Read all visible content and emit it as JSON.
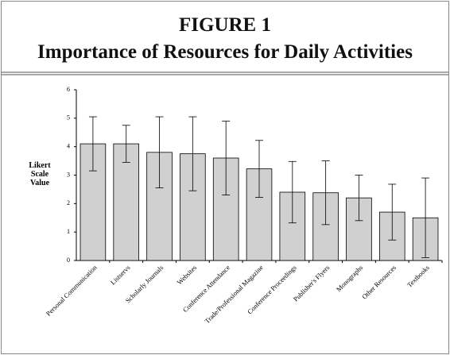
{
  "chart_data": {
    "type": "bar",
    "title": "FIGURE 1",
    "subtitle": "Importance of Resources for Daily Activities",
    "y_label": "Likert Scale Value",
    "categories": [
      "Personal Communication",
      "Listservs",
      "Scholarly Journals",
      "Websites",
      "Conference Attendance",
      "Trade/Professional Magazine",
      "Conference Proceedings",
      "Publisher's Flyers",
      "Monographs",
      "Other Resources",
      "Textbooks"
    ],
    "values": [
      4.1,
      4.1,
      3.8,
      3.75,
      3.6,
      3.22,
      2.4,
      2.38,
      2.2,
      1.7,
      1.5
    ],
    "errors": [
      0.95,
      0.65,
      1.25,
      1.3,
      1.3,
      1.0,
      1.08,
      1.12,
      0.8,
      0.98,
      1.4
    ],
    "color": "#d0d0d0",
    "ylim": [
      0,
      6
    ],
    "yticks": [
      0,
      1,
      2,
      3,
      4,
      5,
      6
    ],
    "grid": false
  }
}
